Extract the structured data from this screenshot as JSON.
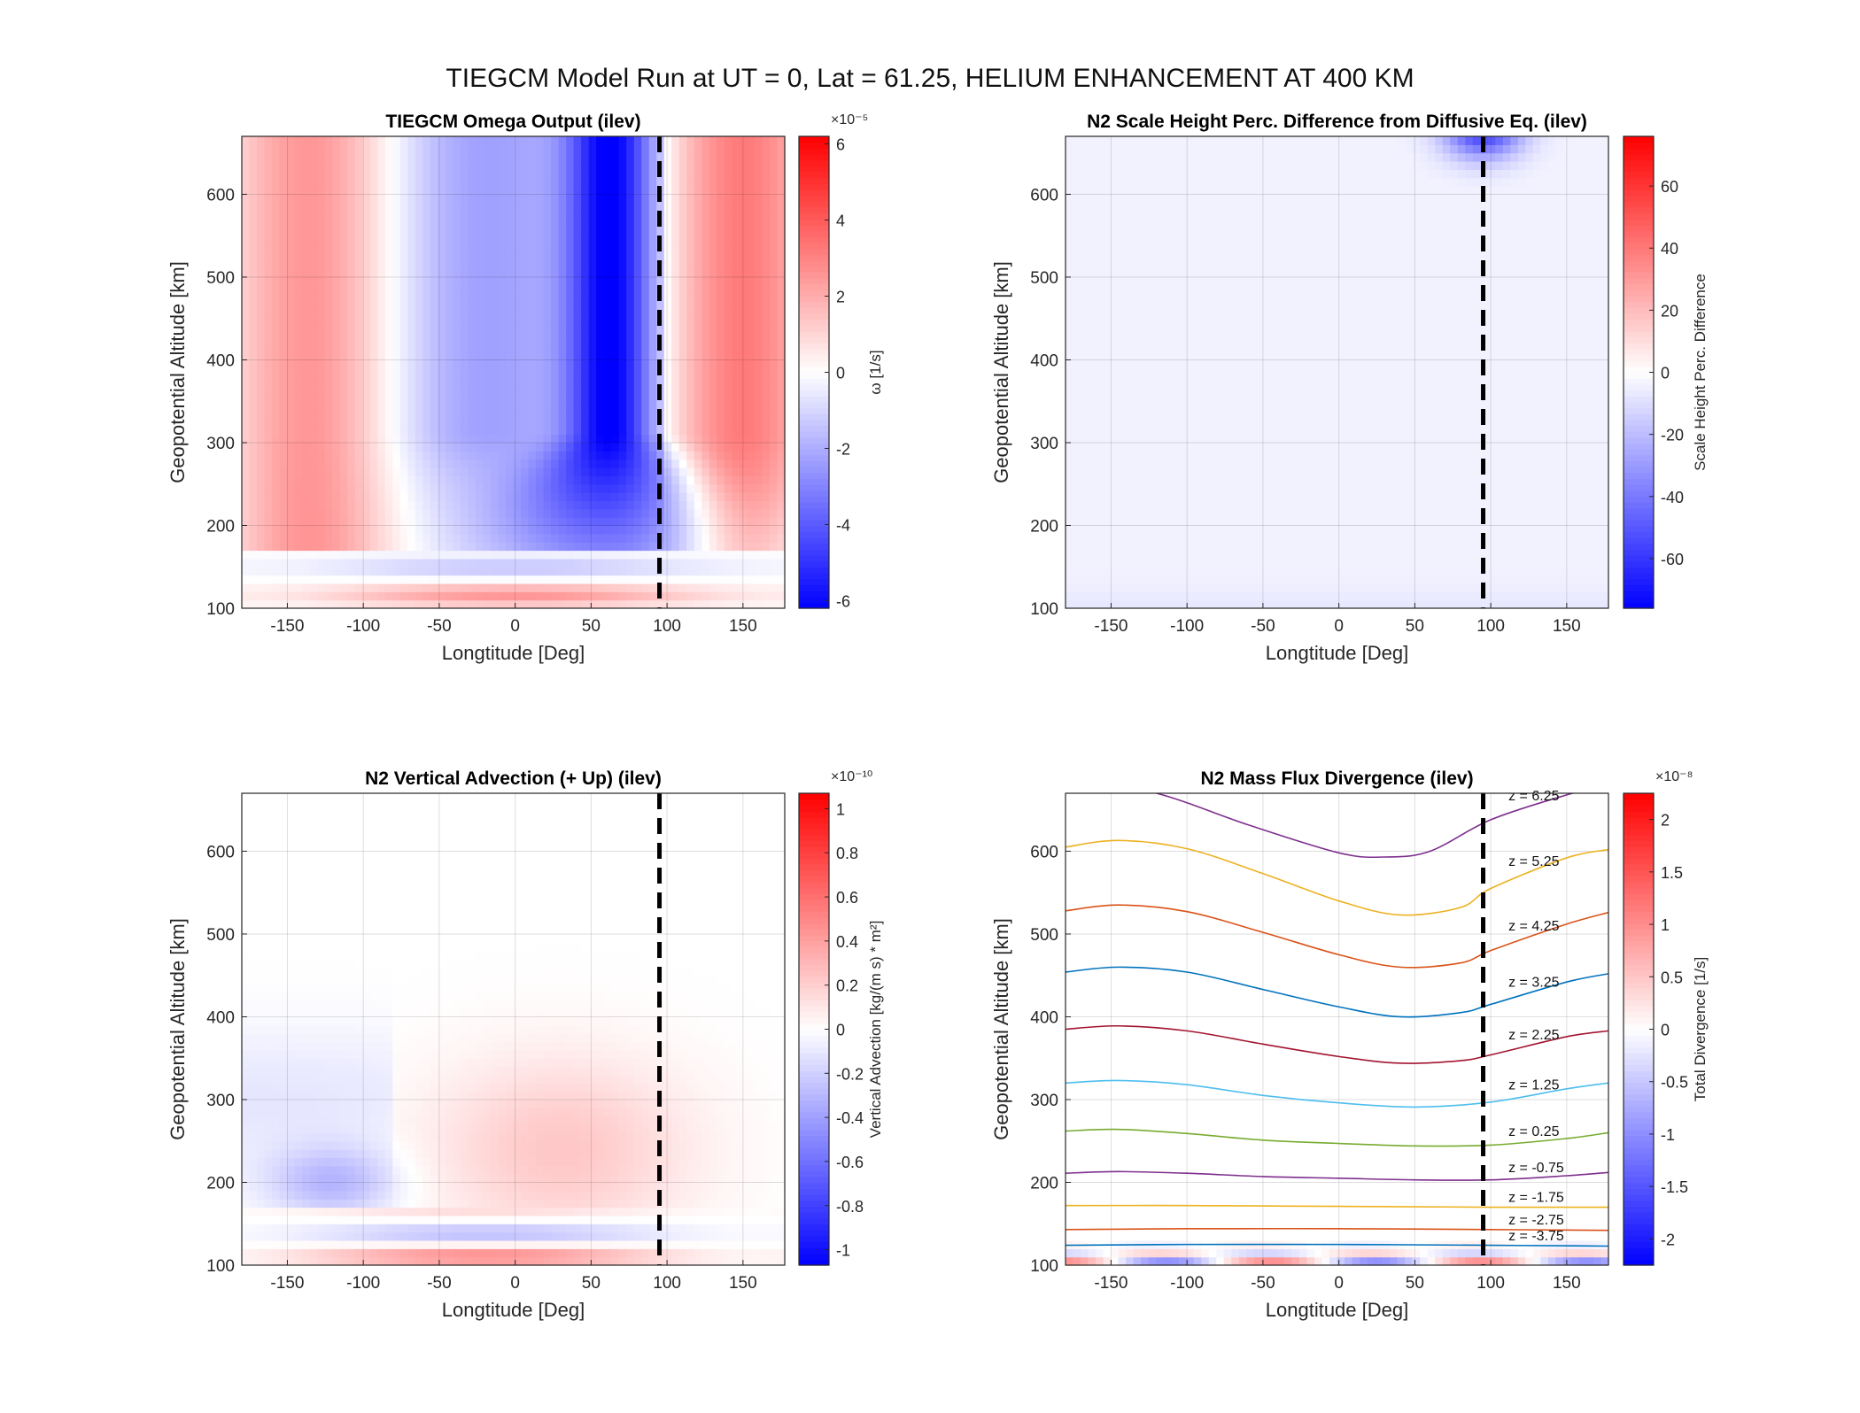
{
  "figure": {
    "suptitle": "TIEGCM Model Run at UT = 0, Lat = 61.25, HELIUM ENHANCEMENT AT 400 KM"
  },
  "colors": {
    "negative": "#0000ff",
    "neutral": "#ffffff",
    "positive": "#ff0000",
    "reference_line": "#000000"
  },
  "chart_data": [
    {
      "id": "omega",
      "type": "heatmap",
      "title": "TIEGCM Omega Output (ilev)",
      "xlabel": "Longtitude [Deg]",
      "ylabel": "Geopotential Altitude [km]",
      "xlim": [
        -180,
        177.5
      ],
      "ylim": [
        100,
        670
      ],
      "xticks": [
        -150,
        -100,
        -50,
        0,
        50,
        100,
        150
      ],
      "yticks": [
        100,
        200,
        300,
        400,
        500,
        600
      ],
      "grid": true,
      "reference_line_x": 95,
      "colorbar": {
        "label": "ω [1/s]",
        "exponent": "×10⁻⁵",
        "clim": [
          -6.2,
          6.2
        ],
        "ticks": [
          -6,
          -4,
          -2,
          0,
          2,
          4,
          6
        ],
        "ticklabels": [
          "-6",
          "-4",
          "-2",
          "0",
          "2",
          "4",
          "6"
        ]
      }
    },
    {
      "id": "scale_height",
      "type": "heatmap",
      "title": "N2 Scale Height Perc. Difference from Diffusive Eq. (ilev)",
      "xlabel": "Longtitude [Deg]",
      "ylabel": "Geopotential Altitude [km]",
      "xlim": [
        -180,
        177.5
      ],
      "ylim": [
        100,
        670
      ],
      "xticks": [
        -150,
        -100,
        -50,
        0,
        50,
        100,
        150
      ],
      "yticks": [
        100,
        200,
        300,
        400,
        500,
        600
      ],
      "grid": true,
      "reference_line_x": 95,
      "colorbar": {
        "label": "Scale Height Perc. Difference",
        "exponent": "",
        "clim": [
          -76,
          76
        ],
        "ticks": [
          -60,
          -40,
          -20,
          0,
          20,
          40,
          60
        ],
        "ticklabels": [
          "-60",
          "-40",
          "-20",
          "0",
          "20",
          "40",
          "60"
        ]
      }
    },
    {
      "id": "advection",
      "type": "heatmap",
      "title": "N2 Vertical Advection (+ Up) (ilev)",
      "xlabel": "Longtitude [Deg]",
      "ylabel": "Geopotential Altitude [km]",
      "xlim": [
        -180,
        177.5
      ],
      "ylim": [
        100,
        670
      ],
      "xticks": [
        -150,
        -100,
        -50,
        0,
        50,
        100,
        150
      ],
      "yticks": [
        100,
        200,
        300,
        400,
        500,
        600
      ],
      "grid": true,
      "reference_line_x": 95,
      "colorbar": {
        "label": "Vertical Advection [kg/(m s) * m²]",
        "exponent": "×10⁻¹⁰",
        "clim": [
          -1.07,
          1.07
        ],
        "ticks": [
          -1,
          -0.8,
          -0.6,
          -0.4,
          -0.2,
          0,
          0.2,
          0.4,
          0.6,
          0.8,
          1
        ],
        "ticklabels": [
          "-1",
          "-0.8",
          "-0.6",
          "-0.4",
          "-0.2",
          "0",
          "0.2",
          "0.4",
          "0.6",
          "0.8",
          "1"
        ]
      }
    },
    {
      "id": "divergence",
      "type": "heatmap",
      "title": "N2 Mass Flux Divergence (ilev)",
      "xlabel": "Longtitude [Deg]",
      "ylabel": "Geopotential Altitude [km]",
      "xlim": [
        -180,
        177.5
      ],
      "ylim": [
        100,
        670
      ],
      "xticks": [
        -150,
        -100,
        -50,
        0,
        50,
        100,
        150
      ],
      "yticks": [
        100,
        200,
        300,
        400,
        500,
        600
      ],
      "grid": true,
      "reference_line_x": 95,
      "colorbar": {
        "label": "Total Divergence [1/s]",
        "exponent": "×10⁻⁸",
        "clim": [
          -2.25,
          2.25
        ],
        "ticks": [
          -2,
          -1.5,
          -1,
          -0.5,
          0,
          0.5,
          1,
          1.5,
          2
        ],
        "ticklabels": [
          "-2",
          "-1.5",
          "-1",
          "-0.5",
          "0",
          "0.5",
          "1",
          "1.5",
          "2"
        ]
      },
      "contours": [
        {
          "label": "z = 6.25",
          "color": "#7e2f8e",
          "x": [
            -180,
            -120,
            -60,
            0,
            30,
            60,
            100,
            150,
            177.5
          ],
          "y": [
            690,
            670,
            632,
            598,
            593,
            600,
            638,
            668,
            680
          ]
        },
        {
          "label": "z = 5.25",
          "color": "#edb120",
          "x": [
            -180,
            -145,
            -100,
            -50,
            0,
            40,
            80,
            100,
            150,
            177.5
          ],
          "y": [
            605,
            613,
            603,
            573,
            540,
            523,
            532,
            555,
            592,
            602
          ]
        },
        {
          "label": "z = 4.25",
          "color": "#d95319",
          "x": [
            -180,
            -145,
            -100,
            -50,
            0,
            40,
            80,
            100,
            150,
            177.5
          ],
          "y": [
            528,
            535,
            527,
            502,
            475,
            460,
            465,
            480,
            512,
            526
          ]
        },
        {
          "label": "z = 3.25",
          "color": "#0072bd",
          "x": [
            -180,
            -145,
            -100,
            -50,
            0,
            40,
            80,
            100,
            150,
            177.5
          ],
          "y": [
            454,
            460,
            454,
            433,
            412,
            400,
            405,
            415,
            442,
            452
          ]
        },
        {
          "label": "z = 2.25",
          "color": "#a2142f",
          "x": [
            -180,
            -145,
            -100,
            -50,
            0,
            40,
            80,
            100,
            150,
            177.5
          ],
          "y": [
            385,
            389,
            383,
            367,
            352,
            344,
            347,
            354,
            376,
            383
          ]
        },
        {
          "label": "z = 1.25",
          "color": "#4dbeee",
          "x": [
            -180,
            -145,
            -100,
            -50,
            0,
            50,
            100,
            150,
            177.5
          ],
          "y": [
            320,
            323,
            318,
            305,
            296,
            291,
            297,
            313,
            320
          ]
        },
        {
          "label": "z = 0.25",
          "color": "#77ac30",
          "x": [
            -180,
            -145,
            -100,
            -50,
            0,
            50,
            100,
            150,
            177.5
          ],
          "y": [
            262,
            264,
            259,
            251,
            247,
            244,
            245,
            253,
            260
          ]
        },
        {
          "label": "z = -0.75",
          "color": "#7e2f8e",
          "x": [
            -180,
            -145,
            -100,
            -50,
            0,
            50,
            100,
            150,
            177.5
          ],
          "y": [
            211,
            213,
            211,
            207,
            205,
            203,
            203,
            208,
            212
          ]
        },
        {
          "label": "z = -1.75",
          "color": "#edb120",
          "x": [
            -180,
            -100,
            0,
            100,
            177.5
          ],
          "y": [
            172,
            172,
            171,
            170,
            170
          ]
        },
        {
          "label": "z = -2.75",
          "color": "#d95319",
          "x": [
            -180,
            -100,
            0,
            100,
            177.5
          ],
          "y": [
            143,
            144,
            144,
            143,
            142
          ]
        },
        {
          "label": "z = -3.75",
          "color": "#0072bd",
          "x": [
            -180,
            -100,
            0,
            100,
            177.5
          ],
          "y": [
            124,
            125,
            125,
            124,
            123
          ]
        }
      ]
    }
  ]
}
